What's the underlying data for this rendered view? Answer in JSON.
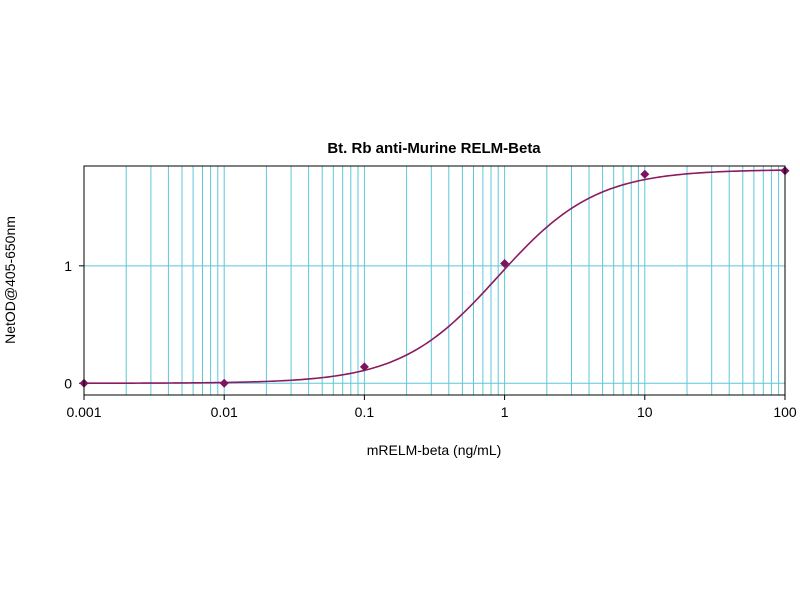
{
  "chart_data": {
    "type": "scatter",
    "title": "Bt. Rb anti-Murine RELM-Beta",
    "xlabel": "mRELM-beta (ng/mL)",
    "ylabel": "NetOD@405-650nm",
    "x_scale": "log",
    "xlim": [
      0.001,
      100
    ],
    "ylim": [
      -0.1,
      1.85
    ],
    "x_ticks": [
      "0.001",
      "0.01",
      "0.1",
      "1",
      "10",
      "100"
    ],
    "y_ticks": [
      "0",
      "1"
    ],
    "grid": true,
    "legend": "none",
    "series": [
      {
        "x": [
          0.001,
          0.01,
          0.1,
          1,
          10,
          100
        ],
        "y": [
          0.0,
          0.0,
          0.14,
          1.02,
          1.78,
          1.81
        ]
      }
    ],
    "curve": {
      "type": "4-parameter logistic",
      "bottom": 0.0,
      "top": 1.82,
      "ec50": 0.9,
      "hill": 1.25
    },
    "colors": {
      "grid": "#5ec8d8",
      "curve": "#8b1a5e",
      "points": "#7b1462",
      "frame": "#000000"
    }
  }
}
